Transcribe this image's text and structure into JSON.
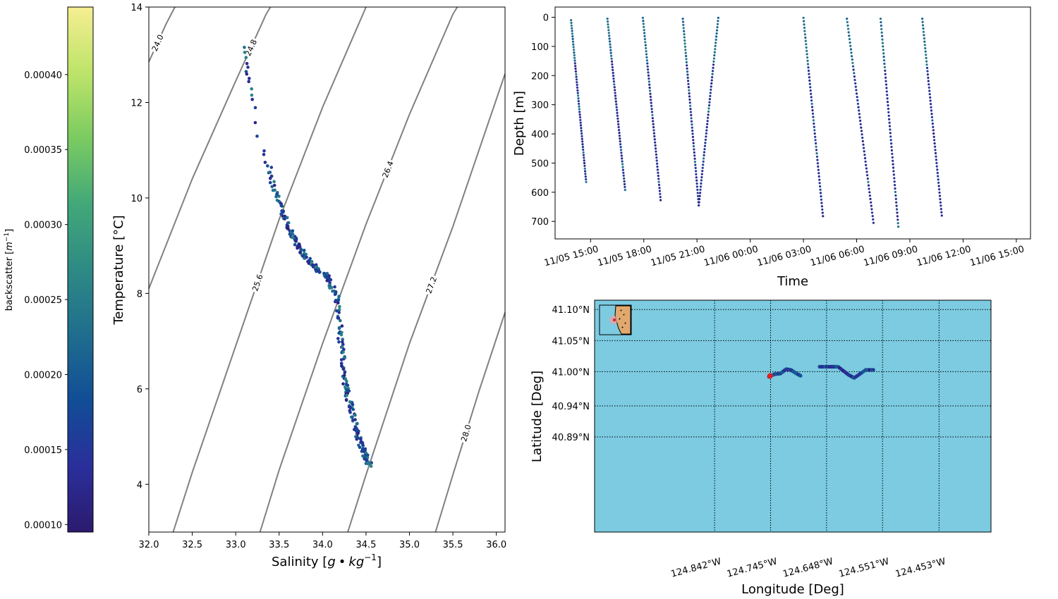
{
  "colorbar": {
    "label": "backscatter",
    "label_unit": "m",
    "label_unit_exp": "−1",
    "range": [
      9.5e-05,
      0.000445
    ],
    "ticks": [
      0.0001,
      0.00015,
      0.0002,
      0.00025,
      0.0003,
      0.00035,
      0.0004
    ],
    "tick_labels": [
      "0.00010",
      "0.00015",
      "0.00020",
      "0.00025",
      "0.00030",
      "0.00035",
      "0.00040"
    ],
    "colormap": [
      "#2c1a6e",
      "#2a2f9b",
      "#114d96",
      "#1f6d8e",
      "#2e8a84",
      "#42a879",
      "#7bcb61",
      "#bde469",
      "#f6ee92"
    ]
  },
  "chart_data": [
    {
      "type": "scatter",
      "xlabel_main": "Salinity [",
      "xlabel_g": "g",
      "xlabel_bullet": "•",
      "xlabel_kg": "kg",
      "xlabel_exp": "−1",
      "xlabel_close": "]",
      "ylabel": "Temperature [°C]",
      "xlim": [
        32.0,
        36.1
      ],
      "ylim": [
        3.0,
        14.0
      ],
      "xticks": [
        "32.0",
        "32.5",
        "33.0",
        "33.5",
        "34.0",
        "34.5",
        "35.0",
        "35.5",
        "36.0"
      ],
      "yticks": [
        "4",
        "6",
        "8",
        "10",
        "12",
        "14"
      ],
      "isopycnals": [
        {
          "label": "24.0",
          "points": [
            [
              32.0,
              12.85
            ],
            [
              32.2,
              13.65
            ],
            [
              32.3,
              14.0
            ]
          ]
        },
        {
          "label": "24.8",
          "points": [
            [
              32.0,
              8.1
            ],
            [
              32.5,
              10.4
            ],
            [
              33.0,
              12.45
            ],
            [
              33.35,
              13.85
            ],
            [
              33.4,
              14.0
            ]
          ]
        },
        {
          "label": "25.6",
          "points": [
            [
              32.28,
              3.0
            ],
            [
              32.5,
              4.25
            ],
            [
              33.0,
              6.9
            ],
            [
              33.5,
              9.55
            ],
            [
              34.0,
              11.9
            ],
            [
              34.5,
              14.0
            ]
          ]
        },
        {
          "label": "26.4",
          "points": [
            [
              33.28,
              3.0
            ],
            [
              33.5,
              4.3
            ],
            [
              34.0,
              6.95
            ],
            [
              34.5,
              9.45
            ],
            [
              35.0,
              11.75
            ],
            [
              35.5,
              13.85
            ],
            [
              35.55,
              14.0
            ]
          ]
        },
        {
          "label": "27.2",
          "points": [
            [
              34.29,
              3.0
            ],
            [
              34.5,
              4.2
            ],
            [
              35.0,
              6.95
            ],
            [
              35.5,
              9.4
            ],
            [
              36.1,
              12.6
            ]
          ]
        },
        {
          "label": "28.0",
          "points": [
            [
              35.3,
              3.0
            ],
            [
              35.5,
              4.2
            ],
            [
              35.8,
              5.95
            ],
            [
              36.1,
              7.6
            ]
          ]
        }
      ],
      "profile": {
        "salinity": [
          33.1,
          33.12,
          33.15,
          33.18,
          33.22,
          33.3,
          33.38,
          33.45,
          33.52,
          33.58,
          33.65,
          33.72,
          33.8,
          33.88,
          33.95,
          34.05,
          34.12,
          34.18,
          34.2,
          34.22,
          34.24,
          34.26,
          34.3,
          34.34,
          34.38,
          34.42,
          34.46,
          34.5,
          34.55
        ],
        "temperature": [
          13.15,
          12.85,
          12.6,
          12.3,
          11.9,
          11.0,
          10.65,
          10.2,
          9.85,
          9.5,
          9.2,
          9.0,
          8.8,
          8.6,
          8.5,
          8.35,
          8.1,
          7.8,
          7.2,
          6.8,
          6.4,
          6.1,
          5.8,
          5.5,
          5.2,
          4.95,
          4.75,
          4.55,
          4.4
        ]
      }
    },
    {
      "type": "scatter",
      "xlabel": "Time",
      "ylabel": "Depth [m]",
      "x_unit": "hours since 11/05 12:00",
      "xlim": [
        13.0,
        39.8
      ],
      "ylim": [
        760,
        -35
      ],
      "xticks": [
        "11/05 15:00",
        "11/05 18:00",
        "11/05 21:00",
        "11/06 00:00",
        "11/06 03:00",
        "11/06 06:00",
        "11/06 09:00",
        "11/06 12:00",
        "11/06 15:00"
      ],
      "yticks": [
        "0",
        "100",
        "200",
        "300",
        "400",
        "500",
        "600",
        "700"
      ],
      "segments": [
        {
          "t": [
            13.9,
            14.75
          ],
          "depth": [
            10,
            565
          ]
        },
        {
          "t": [
            15.95,
            16.95
          ],
          "depth": [
            5,
            592
          ]
        },
        {
          "t": [
            17.95,
            18.95
          ],
          "depth": [
            2,
            627
          ]
        },
        {
          "t": [
            20.2,
            21.1
          ],
          "depth": [
            5,
            645
          ]
        },
        {
          "t": [
            21.1,
            22.2
          ],
          "depth": [
            645,
            2
          ]
        },
        {
          "t": [
            27.0,
            28.1
          ],
          "depth": [
            2,
            682
          ]
        },
        {
          "t": [
            29.45,
            30.95
          ],
          "depth": [
            5,
            705
          ]
        },
        {
          "t": [
            31.35,
            32.35
          ],
          "depth": [
            5,
            718
          ]
        },
        {
          "t": [
            33.7,
            34.8
          ],
          "depth": [
            5,
            680
          ]
        }
      ]
    },
    {
      "type": "scatter",
      "xlabel": "Longitude [Deg]",
      "ylabel": "Latitude [Deg]",
      "xlim": [
        125.05,
        124.363
      ],
      "ylim": [
        40.742,
        41.115
      ],
      "xticks": [
        "124.842°W",
        "124.745°W",
        "124.648°W",
        "124.551°W",
        "124.453°W"
      ],
      "xtick_values": [
        124.842,
        124.745,
        124.648,
        124.551,
        124.453
      ],
      "yticks": [
        "41.10°N",
        "41.05°N",
        "41.00°N",
        "40.94°N",
        "40.89°N"
      ],
      "ytick_values": [
        41.1,
        41.05,
        41.0,
        40.945,
        40.895
      ],
      "ocean_color": "#7ccbe1",
      "track": {
        "lon": [
          124.748,
          124.738,
          124.728,
          124.718,
          124.71,
          124.7,
          124.692,
          124.66,
          124.64,
          124.628,
          124.61,
          124.6,
          124.58,
          124.565
        ],
        "lat": [
          40.992,
          40.996,
          40.997,
          41.004,
          41.003,
          40.997,
          40.993,
          41.008,
          41.008,
          41.008,
          40.995,
          40.99,
          41.003,
          41.003
        ]
      },
      "start_marker": {
        "lon": 124.746,
        "lat": 40.993,
        "color": "#dd2222"
      }
    }
  ]
}
